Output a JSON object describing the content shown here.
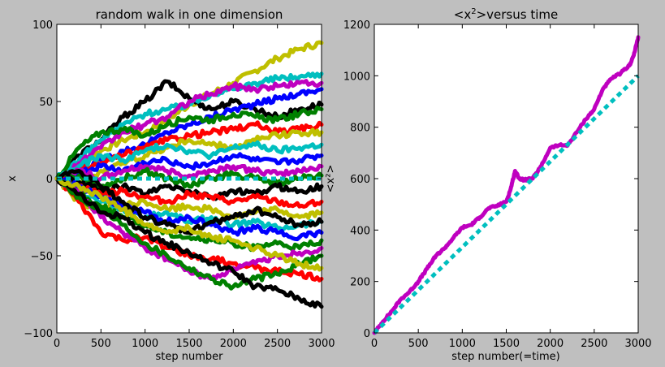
{
  "chart_data": [
    {
      "type": "line",
      "title": "random walk in one dimension",
      "xlabel": "step number",
      "ylabel": "x",
      "xlim": [
        0,
        3000
      ],
      "ylim": [
        -100,
        100
      ],
      "xticks": [
        "0",
        "500",
        "1000",
        "1500",
        "2000",
        "2500",
        "3000"
      ],
      "yticks": [
        "100",
        "50",
        "0",
        "−50",
        "−100"
      ],
      "grid": false,
      "legend": "none",
      "series_colors": [
        "#0000ff",
        "#008000",
        "#ff0000",
        "#00bfbf",
        "#bf00bf",
        "#bfbf00",
        "#000000"
      ],
      "series": [
        {
          "color": "#bfbf00",
          "x": [
            0,
            250,
            500,
            750,
            1000,
            1250,
            1500,
            1750,
            2000,
            2250,
            2500,
            2750,
            3000
          ],
          "values": [
            0,
            10,
            18,
            25,
            30,
            38,
            48,
            55,
            62,
            70,
            78,
            84,
            88
          ]
        },
        {
          "color": "#000000",
          "x": [
            0,
            250,
            500,
            750,
            1000,
            1250,
            1500,
            1750,
            2000,
            2250,
            2500,
            2750,
            3000
          ],
          "values": [
            0,
            15,
            25,
            40,
            50,
            63,
            52,
            45,
            50,
            45,
            40,
            45,
            48
          ]
        },
        {
          "color": "#00bfbf",
          "x": [
            0,
            250,
            500,
            750,
            1000,
            1250,
            1500,
            1750,
            2000,
            2250,
            2500,
            2750,
            3000
          ],
          "values": [
            0,
            12,
            25,
            35,
            42,
            45,
            48,
            55,
            58,
            62,
            65,
            66,
            68
          ]
        },
        {
          "color": "#bf00bf",
          "x": [
            0,
            250,
            500,
            750,
            1000,
            1250,
            1500,
            1750,
            2000,
            2250,
            2500,
            2750,
            3000
          ],
          "values": [
            0,
            10,
            20,
            30,
            35,
            40,
            50,
            55,
            60,
            58,
            60,
            62,
            62
          ]
        },
        {
          "color": "#0000ff",
          "x": [
            0,
            250,
            500,
            750,
            1000,
            1250,
            1500,
            1750,
            2000,
            2250,
            2500,
            2750,
            3000
          ],
          "values": [
            0,
            5,
            12,
            18,
            22,
            30,
            35,
            40,
            45,
            48,
            52,
            55,
            58
          ]
        },
        {
          "color": "#008000",
          "x": [
            0,
            250,
            500,
            750,
            1000,
            1250,
            1500,
            1750,
            2000,
            2250,
            2500,
            2750,
            3000
          ],
          "values": [
            0,
            20,
            30,
            32,
            28,
            35,
            40,
            38,
            42,
            40,
            38,
            42,
            45
          ]
        },
        {
          "color": "#ff0000",
          "x": [
            0,
            250,
            500,
            750,
            1000,
            1250,
            1500,
            1750,
            2000,
            2250,
            2500,
            2750,
            3000
          ],
          "values": [
            0,
            5,
            10,
            15,
            20,
            25,
            28,
            30,
            32,
            35,
            30,
            32,
            35
          ]
        },
        {
          "color": "#bfbf00",
          "x": [
            0,
            250,
            500,
            750,
            1000,
            1250,
            1500,
            1750,
            2000,
            2250,
            2500,
            2750,
            3000
          ],
          "values": [
            0,
            -5,
            5,
            10,
            15,
            20,
            25,
            22,
            20,
            25,
            28,
            30,
            30
          ]
        },
        {
          "color": "#00bfbf",
          "x": [
            0,
            250,
            500,
            750,
            1000,
            1250,
            1500,
            1750,
            2000,
            2250,
            2500,
            2750,
            3000
          ],
          "values": [
            0,
            8,
            15,
            12,
            18,
            22,
            18,
            15,
            20,
            22,
            18,
            20,
            22
          ]
        },
        {
          "color": "#0000ff",
          "x": [
            0,
            250,
            500,
            750,
            1000,
            1250,
            1500,
            1750,
            2000,
            2250,
            2500,
            2750,
            3000
          ],
          "values": [
            0,
            3,
            8,
            5,
            10,
            12,
            8,
            10,
            15,
            12,
            10,
            12,
            15
          ]
        },
        {
          "color": "#bf00bf",
          "x": [
            0,
            250,
            500,
            750,
            1000,
            1250,
            1500,
            1750,
            2000,
            2250,
            2500,
            2750,
            3000
          ],
          "values": [
            0,
            5,
            0,
            5,
            8,
            5,
            2,
            5,
            8,
            5,
            3,
            5,
            8
          ]
        },
        {
          "color": "#008000",
          "x": [
            0,
            250,
            500,
            750,
            1000,
            1250,
            1500,
            1750,
            2000,
            2250,
            2500,
            2750,
            3000
          ],
          "values": [
            0,
            2,
            -5,
            0,
            5,
            0,
            -5,
            0,
            3,
            0,
            -3,
            0,
            2
          ]
        },
        {
          "color": "#000000",
          "x": [
            0,
            250,
            500,
            750,
            1000,
            1250,
            1500,
            1750,
            2000,
            2250,
            2500,
            2750,
            3000
          ],
          "values": [
            0,
            -2,
            -8,
            -5,
            -10,
            -5,
            -8,
            -12,
            -8,
            -10,
            -5,
            -8,
            -5
          ]
        },
        {
          "color": "#ff0000",
          "x": [
            0,
            250,
            500,
            750,
            1000,
            1250,
            1500,
            1750,
            2000,
            2250,
            2500,
            2750,
            3000
          ],
          "values": [
            0,
            -5,
            -10,
            -8,
            -12,
            -15,
            -10,
            -12,
            -15,
            -12,
            -15,
            -18,
            -15
          ]
        },
        {
          "color": "#bfbf00",
          "x": [
            0,
            250,
            500,
            750,
            1000,
            1250,
            1500,
            1750,
            2000,
            2250,
            2500,
            2750,
            3000
          ],
          "values": [
            0,
            -15,
            -20,
            -18,
            -15,
            -20,
            -18,
            -20,
            -25,
            -22,
            -20,
            -25,
            -22
          ]
        },
        {
          "color": "#00bfbf",
          "x": [
            0,
            250,
            500,
            750,
            1000,
            1250,
            1500,
            1750,
            2000,
            2250,
            2500,
            2750,
            3000
          ],
          "values": [
            0,
            -8,
            -15,
            -20,
            -25,
            -22,
            -28,
            -25,
            -30,
            -28,
            -32,
            -30,
            -28
          ]
        },
        {
          "color": "#0000ff",
          "x": [
            0,
            250,
            500,
            750,
            1000,
            1250,
            1500,
            1750,
            2000,
            2250,
            2500,
            2750,
            3000
          ],
          "values": [
            0,
            -5,
            -12,
            -18,
            -22,
            -28,
            -25,
            -30,
            -35,
            -32,
            -35,
            -38,
            -35
          ]
        },
        {
          "color": "#008000",
          "x": [
            0,
            250,
            500,
            750,
            1000,
            1250,
            1500,
            1750,
            2000,
            2250,
            2500,
            2750,
            3000
          ],
          "values": [
            0,
            -10,
            -18,
            -25,
            -30,
            -35,
            -38,
            -40,
            -42,
            -45,
            -42,
            -45,
            -40
          ]
        },
        {
          "color": "#ff0000",
          "x": [
            0,
            250,
            500,
            750,
            1000,
            1250,
            1500,
            1750,
            2000,
            2250,
            2500,
            2750,
            3000
          ],
          "values": [
            0,
            -15,
            -35,
            -40,
            -38,
            -45,
            -50,
            -52,
            -55,
            -58,
            -60,
            -62,
            -65
          ]
        },
        {
          "color": "#bf00bf",
          "x": [
            0,
            250,
            500,
            750,
            1000,
            1250,
            1500,
            1750,
            2000,
            2250,
            2500,
            2750,
            3000
          ],
          "values": [
            0,
            -10,
            -25,
            -35,
            -45,
            -52,
            -60,
            -65,
            -58,
            -55,
            -50,
            -48,
            -45
          ]
        },
        {
          "color": "#008000",
          "x": [
            0,
            250,
            500,
            750,
            1000,
            1250,
            1500,
            1750,
            2000,
            2250,
            2500,
            2750,
            3000
          ],
          "values": [
            0,
            -12,
            -20,
            -30,
            -42,
            -50,
            -58,
            -65,
            -70,
            -65,
            -62,
            -55,
            -50
          ]
        },
        {
          "color": "#000000",
          "x": [
            0,
            250,
            500,
            750,
            1000,
            1250,
            1500,
            1750,
            2000,
            2250,
            2500,
            2750,
            3000
          ],
          "values": [
            0,
            -10,
            -22,
            -25,
            -35,
            -42,
            -48,
            -55,
            -60,
            -70,
            -72,
            -78,
            -83
          ]
        },
        {
          "color": "#000000",
          "x": [
            0,
            250,
            500,
            750,
            1000,
            1250,
            1500,
            1750,
            2000,
            2250,
            2500,
            2750,
            3000
          ],
          "values": [
            0,
            5,
            -5,
            -15,
            -25,
            -30,
            -35,
            -28,
            -25,
            -20,
            -25,
            -30,
            -28
          ]
        },
        {
          "color": "#bfbf00",
          "x": [
            0,
            250,
            500,
            750,
            1000,
            1250,
            1500,
            1750,
            2000,
            2250,
            2500,
            2750,
            3000
          ],
          "values": [
            0,
            -5,
            -12,
            -20,
            -30,
            -35,
            -32,
            -38,
            -40,
            -45,
            -50,
            -55,
            -58
          ]
        },
        {
          "color": "#00bfbf",
          "x": [
            0,
            3000
          ],
          "values": [
            0,
            0
          ],
          "dashed": true
        }
      ]
    },
    {
      "type": "line",
      "title_main": "<x",
      "title_sup": "2",
      "title_rest": ">versus time",
      "xlabel": "step number(=time)",
      "ylabel": "<x²>",
      "xlim": [
        0,
        3000
      ],
      "ylim": [
        0,
        1200
      ],
      "xticks": [
        "0",
        "500",
        "1000",
        "1500",
        "2000",
        "2500",
        "3000"
      ],
      "yticks": [
        "1200",
        "1000",
        "800",
        "600",
        "400",
        "200",
        "0"
      ],
      "grid": false,
      "legend": "none",
      "series": [
        {
          "color": "#bf00bf",
          "x": [
            0,
            100,
            200,
            300,
            400,
            500,
            600,
            700,
            800,
            900,
            1000,
            1100,
            1200,
            1300,
            1400,
            1500,
            1550,
            1600,
            1650,
            1700,
            1800,
            1900,
            2000,
            2100,
            2200,
            2300,
            2400,
            2500,
            2600,
            2700,
            2800,
            2900,
            2950,
            3000
          ],
          "values": [
            0,
            45,
            85,
            130,
            160,
            200,
            250,
            300,
            330,
            370,
            410,
            420,
            450,
            485,
            495,
            510,
            560,
            630,
            600,
            595,
            600,
            650,
            720,
            730,
            730,
            780,
            830,
            870,
            950,
            990,
            1010,
            1040,
            1080,
            1150
          ]
        },
        {
          "color": "#00bfbf",
          "x": [
            0,
            3000
          ],
          "values": [
            0,
            1000
          ],
          "dashed": true
        }
      ]
    }
  ]
}
